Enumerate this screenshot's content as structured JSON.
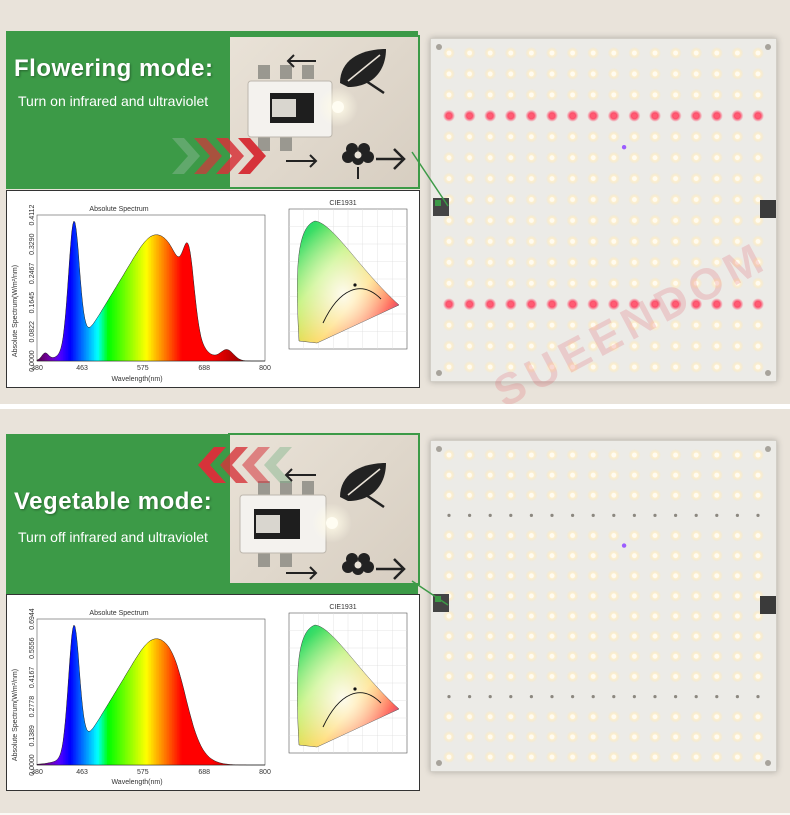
{
  "flowering": {
    "title": "Flowering mode:",
    "subtitle": "Turn on infrared and ultraviolet",
    "spectrum": {
      "title": "Absolute Spectrum",
      "xlabel": "Wavelength(nm)",
      "ylabel": "Absolute Spectrum(W/m²/nm)",
      "x_ticks": [
        "380",
        "463",
        "575",
        "688",
        "800"
      ],
      "y_ticks": [
        "0.0000",
        "0.0822",
        "0.1645",
        "0.2467",
        "0.3290",
        "0.4112"
      ]
    },
    "cie_title": "CIE1931"
  },
  "vegetable": {
    "title": "Vegetable mode:",
    "subtitle": "Turn off infrared and ultraviolet",
    "spectrum": {
      "title": "Absolute Spectrum",
      "xlabel": "Wavelength(nm)",
      "ylabel": "Absolute Spectrum(W/m²/nm)",
      "x_ticks": [
        "380",
        "463",
        "575",
        "688",
        "800"
      ],
      "y_ticks": [
        "0.0000",
        "0.1389",
        "0.2778",
        "0.4167",
        "0.5556",
        "0.6944"
      ]
    },
    "cie_title": "CIE1931"
  },
  "watermark": "SUEENDOM",
  "colors": {
    "mode_green": "#3c9a47",
    "chevron_red": "#d6333a",
    "led_warm": "#fff3d6",
    "led_red": "#ff3355",
    "led_uv": "#9b5cff"
  },
  "icons": [
    "arrow-left-icon",
    "leaf-icon",
    "arrow-right-icon",
    "flower-icon",
    "chevron-icon"
  ]
}
